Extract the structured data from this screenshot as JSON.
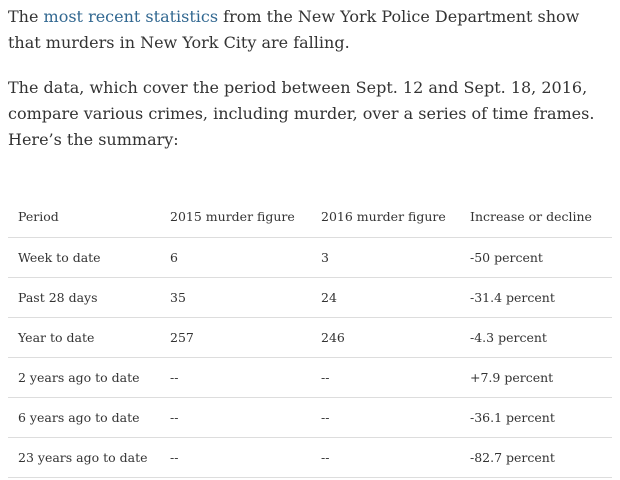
{
  "article": {
    "paragraph1": {
      "link_text": "most recent statistics",
      "lead": "The ",
      "rest": " from the New York Police Department show that murders in New York City are falling."
    },
    "paragraph2": "The data, which cover the period between Sept. 12 and Sept. 18, 2016, compare various crimes, including murder, over a series of time frames. Here’s the summary:"
  },
  "table": {
    "headers": [
      "Period",
      "2015 murder figure",
      "2016 murder figure",
      "Increase or decline"
    ],
    "rows": [
      [
        "Week to date",
        "6",
        "3",
        "-50 percent"
      ],
      [
        "Past 28 days",
        "35",
        "24",
        "-31.4 percent"
      ],
      [
        "Year to date",
        "257",
        "246",
        "-4.3 percent"
      ],
      [
        "2 years ago to date",
        "--",
        "--",
        "+7.9 percent"
      ],
      [
        "6 years ago to date",
        "--",
        "--",
        "-36.1 percent"
      ],
      [
        "23 years ago to date",
        "--",
        "--",
        "-82.7 percent"
      ]
    ]
  },
  "colors": {
    "link": "#326891",
    "text": "#333333",
    "rule": "#dddddd"
  }
}
